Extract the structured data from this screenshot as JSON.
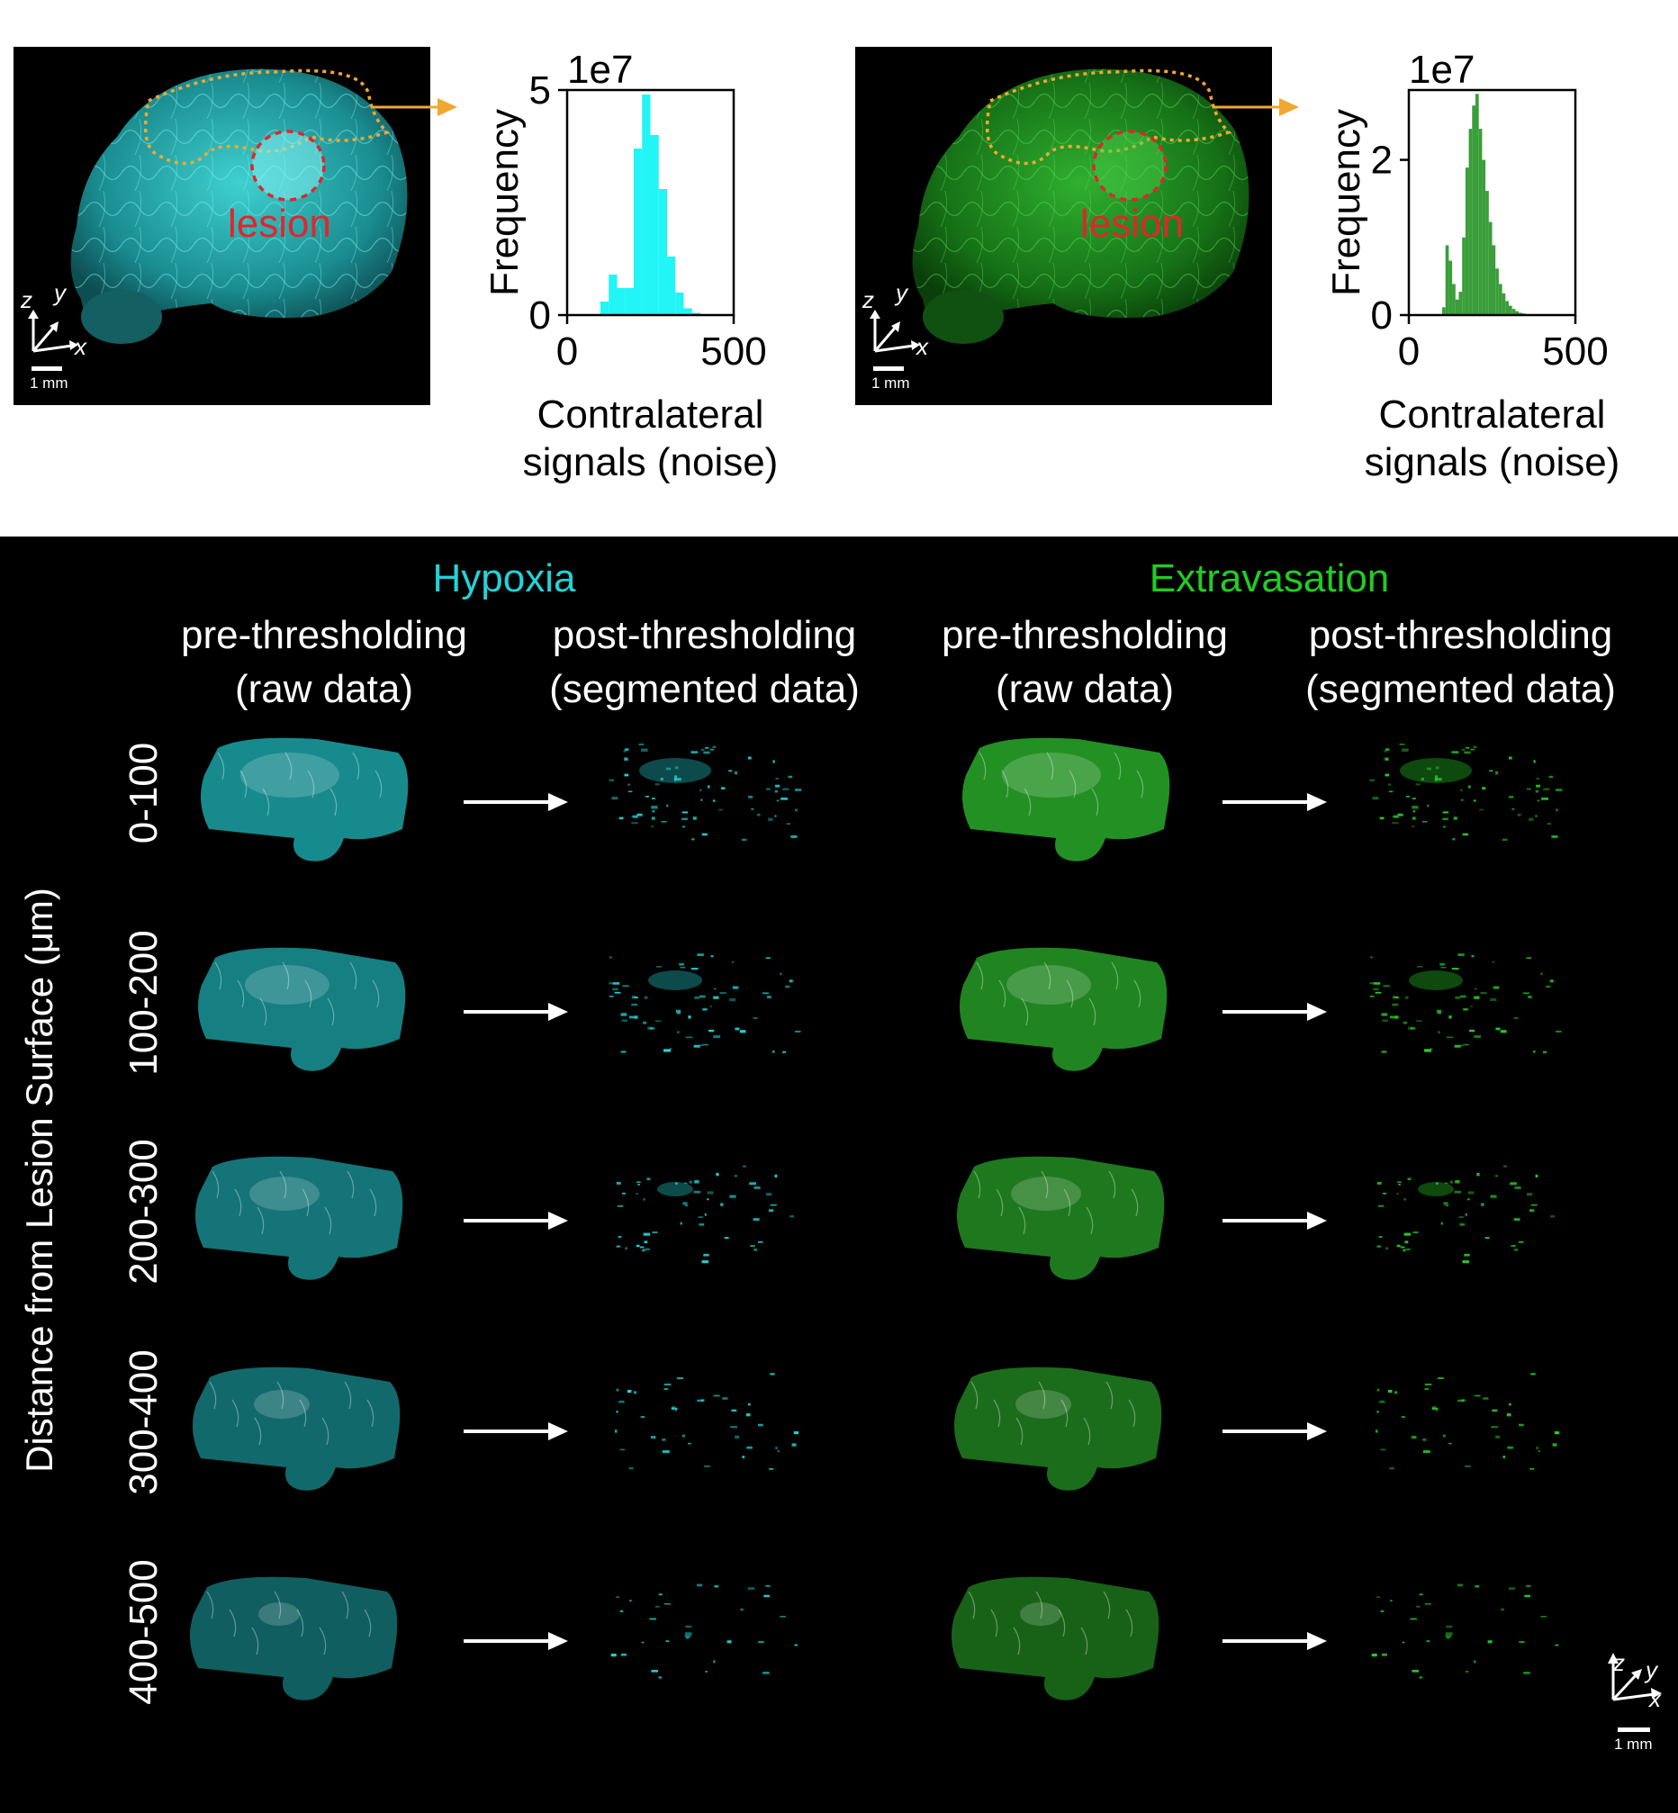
{
  "top": {
    "hypoxia_panel": {
      "lesion_label": "lesion",
      "axes": {
        "z": "z",
        "y": "y",
        "x": "x"
      },
      "scale_bar": "1 mm"
    },
    "extravasation_panel": {
      "lesion_label": "lesion",
      "axes": {
        "z": "z",
        "y": "y",
        "x": "x"
      },
      "scale_bar": "1 mm"
    }
  },
  "bottom": {
    "hypoxia_title": "Hypoxia",
    "extravasation_title": "Extravasation",
    "col_pre_line1": "pre-thresholding",
    "col_pre_line2": "(raw data)",
    "col_post_line1": "post-thresholding",
    "col_post_line2": "(segmented data)",
    "y_axis_label": "Distance from Lesion Surface (μm)",
    "rows": [
      "0-100",
      "100-200",
      "200-300",
      "300-400",
      "400-500"
    ],
    "axes": {
      "z": "z",
      "y": "y",
      "x": "x"
    },
    "scale_bar": "1 mm"
  },
  "colors": {
    "hypoxia": "#22d3d8",
    "extravasation": "#22cc22",
    "arrow_orange": "#f0a830",
    "lesion_red": "#e0262c"
  },
  "chart_data": [
    {
      "type": "bar",
      "title": "",
      "xlabel": "Contralateral signals (noise)",
      "ylabel": "Frequency",
      "multiplier": "1e7",
      "xlim": [
        0,
        500
      ],
      "ylim": [
        0,
        5
      ],
      "xticks": [
        "0",
        "500"
      ],
      "yticks": [
        "0",
        "5"
      ],
      "color": "#22f5f5",
      "bin_edges": [
        100,
        125,
        150,
        175,
        200,
        225,
        250,
        275,
        300,
        325,
        350,
        375,
        400
      ],
      "values": [
        0.3,
        0.9,
        0.6,
        0.6,
        3.7,
        4.9,
        4.0,
        2.8,
        1.3,
        0.5,
        0.15,
        0.05
      ]
    },
    {
      "type": "bar",
      "title": "",
      "xlabel": "Contralateral signals (noise)",
      "ylabel": "Frequency",
      "multiplier": "1e7",
      "xlim": [
        0,
        500
      ],
      "ylim": [
        0,
        2.9
      ],
      "xticks": [
        "0",
        "500"
      ],
      "yticks": [
        "0",
        "2"
      ],
      "color": "#3a9e3a",
      "bin_edges": [
        100,
        110,
        120,
        130,
        140,
        150,
        160,
        170,
        180,
        190,
        200,
        210,
        220,
        230,
        240,
        250,
        260,
        270,
        280,
        290,
        300,
        310,
        320,
        330,
        340,
        350,
        360,
        370,
        380
      ],
      "values": [
        0.1,
        0.9,
        0.7,
        0.4,
        0.2,
        0.3,
        1.0,
        1.9,
        2.4,
        2.7,
        2.85,
        2.4,
        2.0,
        1.6,
        1.2,
        0.9,
        0.6,
        0.4,
        0.28,
        0.18,
        0.12,
        0.08,
        0.05,
        0.03,
        0.02,
        0.01,
        0.005,
        0.003
      ]
    }
  ]
}
